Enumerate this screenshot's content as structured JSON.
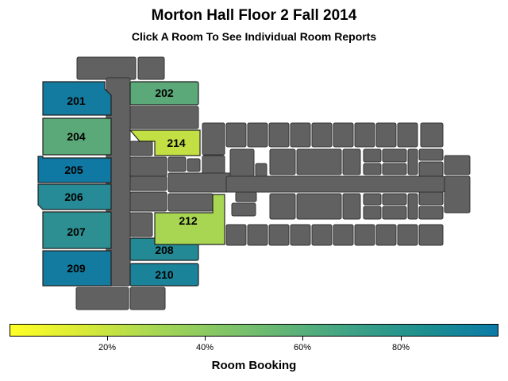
{
  "title": "Morton Hall Floor 2 Fall 2014",
  "subtitle": "Click A Room To See Individual Room Reports",
  "rooms": [
    {
      "id": "201",
      "booking": 0.95,
      "color": "#137b9f"
    },
    {
      "id": "202",
      "booking": 0.62,
      "color": "#5ba978"
    },
    {
      "id": "204",
      "booking": 0.62,
      "color": "#5ba978"
    },
    {
      "id": "205",
      "booking": 0.97,
      "color": "#0f79a3"
    },
    {
      "id": "206",
      "booking": 0.84,
      "color": "#268b96"
    },
    {
      "id": "207",
      "booking": 0.8,
      "color": "#2d8f91"
    },
    {
      "id": "208",
      "booking": 0.86,
      "color": "#238994"
    },
    {
      "id": "209",
      "booking": 0.95,
      "color": "#137b9f"
    },
    {
      "id": "210",
      "booking": 0.9,
      "color": "#1a8399"
    },
    {
      "id": "212",
      "booking": 0.36,
      "color": "#a8d653"
    },
    {
      "id": "214",
      "booking": 0.3,
      "color": "#c2e044"
    }
  ],
  "colorbar": {
    "title": "Room Booking",
    "ticks": [
      "20%",
      "40%",
      "60%",
      "80%"
    ]
  }
}
